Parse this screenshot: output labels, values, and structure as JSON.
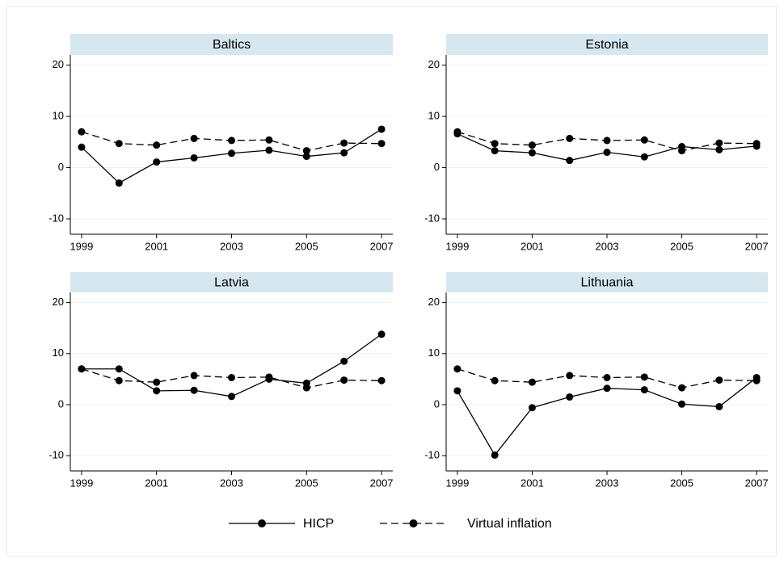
{
  "chart_data": [
    {
      "type": "line",
      "title": "Baltics",
      "x": [
        1999,
        2000,
        2001,
        2002,
        2003,
        2004,
        2005,
        2006,
        2007
      ],
      "series": [
        {
          "name": "HICP",
          "color": "#000000",
          "line_style": "solid",
          "values": [
            4.0,
            -3.0,
            1.1,
            1.9,
            2.8,
            3.4,
            2.2,
            2.9,
            7.5
          ]
        },
        {
          "name": "Virtual inflation",
          "color": "#000000",
          "line_style": "dashed",
          "values": [
            7.0,
            4.7,
            4.4,
            5.7,
            5.3,
            5.4,
            3.3,
            4.8,
            4.7
          ]
        }
      ],
      "xlim": [
        1998.7,
        2007.3
      ],
      "xticks": [
        1999,
        2001,
        2003,
        2005,
        2007
      ],
      "ylim": [
        -13,
        22
      ],
      "yticks": [
        -10,
        0,
        10,
        20
      ],
      "grid": true
    },
    {
      "type": "line",
      "title": "Estonia",
      "x": [
        1999,
        2000,
        2001,
        2002,
        2003,
        2004,
        2005,
        2006,
        2007
      ],
      "series": [
        {
          "name": "HICP",
          "color": "#000000",
          "line_style": "solid",
          "values": [
            6.6,
            3.3,
            2.9,
            1.4,
            3.0,
            2.1,
            4.1,
            3.5,
            4.2
          ]
        },
        {
          "name": "Virtual inflation",
          "color": "#000000",
          "line_style": "dashed",
          "values": [
            7.0,
            4.7,
            4.4,
            5.7,
            5.3,
            5.4,
            3.3,
            4.8,
            4.7
          ]
        }
      ],
      "xlim": [
        1998.7,
        2007.3
      ],
      "xticks": [
        1999,
        2001,
        2003,
        2005,
        2007
      ],
      "ylim": [
        -13,
        22
      ],
      "yticks": [
        -10,
        0,
        10,
        20
      ],
      "grid": true
    },
    {
      "type": "line",
      "title": "Latvia",
      "x": [
        1999,
        2000,
        2001,
        2002,
        2003,
        2004,
        2005,
        2006,
        2007
      ],
      "series": [
        {
          "name": "HICP",
          "color": "#000000",
          "line_style": "solid",
          "values": [
            7.0,
            7.0,
            2.7,
            2.8,
            1.6,
            5.0,
            4.2,
            8.5,
            13.8
          ]
        },
        {
          "name": "Virtual inflation",
          "color": "#000000",
          "line_style": "dashed",
          "values": [
            7.0,
            4.7,
            4.4,
            5.7,
            5.3,
            5.4,
            3.3,
            4.8,
            4.7
          ]
        }
      ],
      "xlim": [
        1998.7,
        2007.3
      ],
      "xticks": [
        1999,
        2001,
        2003,
        2005,
        2007
      ],
      "ylim": [
        -13,
        22
      ],
      "yticks": [
        -10,
        0,
        10,
        20
      ],
      "grid": true
    },
    {
      "type": "line",
      "title": "Lithuania",
      "x": [
        1999,
        2000,
        2001,
        2002,
        2003,
        2004,
        2005,
        2006,
        2007
      ],
      "series": [
        {
          "name": "HICP",
          "color": "#000000",
          "line_style": "solid",
          "values": [
            2.7,
            -9.9,
            -0.6,
            1.5,
            3.2,
            2.9,
            0.1,
            -0.4,
            5.3
          ]
        },
        {
          "name": "Virtual inflation",
          "color": "#000000",
          "line_style": "dashed",
          "values": [
            7.0,
            4.7,
            4.4,
            5.7,
            5.3,
            5.4,
            3.3,
            4.8,
            4.7
          ]
        }
      ],
      "xlim": [
        1998.7,
        2007.3
      ],
      "xticks": [
        1999,
        2001,
        2003,
        2005,
        2007
      ],
      "ylim": [
        -13,
        22
      ],
      "yticks": [
        -10,
        0,
        10,
        20
      ],
      "grid": true
    }
  ]
}
